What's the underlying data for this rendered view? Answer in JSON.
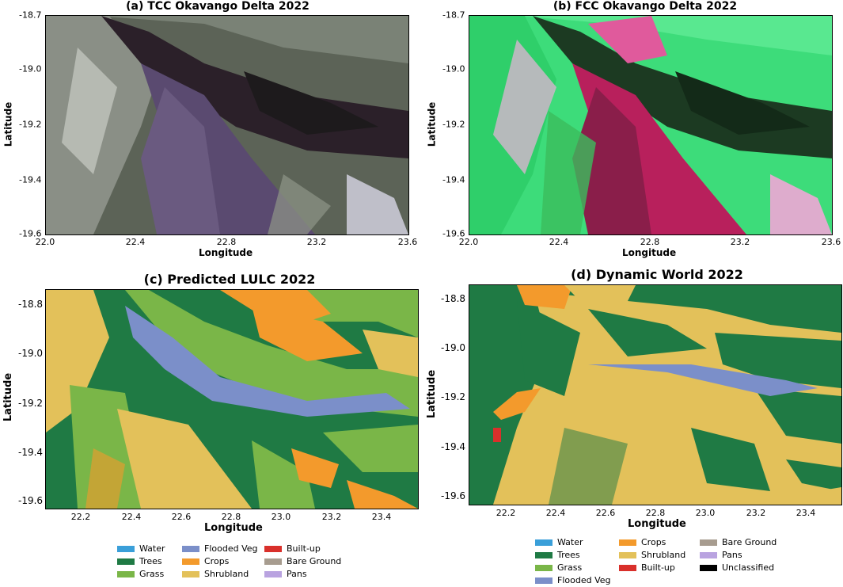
{
  "panels": {
    "a": {
      "title": "(a) TCC Okavango Delta 2022",
      "xlabel": "Longitude",
      "ylabel": "Latitude",
      "xticks": [
        "22.0",
        "22.4",
        "22.8",
        "23.2",
        "23.6"
      ],
      "yticks": [
        "-18.7",
        "-19.0",
        "-19.2",
        "-19.4",
        "-19.6"
      ]
    },
    "b": {
      "title": "(b) FCC Okavango Delta 2022",
      "xlabel": "Longitude",
      "ylabel": "Latitude",
      "xticks": [
        "22.0",
        "22.4",
        "22.8",
        "23.2",
        "23.6"
      ],
      "yticks": [
        "-18.7",
        "-19.0",
        "-19.2",
        "-19.4",
        "-19.6"
      ]
    },
    "c": {
      "title": "(c) Predicted LULC 2022",
      "xlabel": "Longitude",
      "ylabel": "Latitude",
      "xticks": [
        "22.2",
        "22.4",
        "22.6",
        "22.8",
        "23.0",
        "23.2",
        "23.4"
      ],
      "yticks": [
        "-18.8",
        "-19.0",
        "-19.2",
        "-19.4",
        "-19.6"
      ]
    },
    "d": {
      "title": "(d) Dynamic World 2022",
      "xlabel": "Longitude",
      "ylabel": "Latitude",
      "xticks": [
        "22.2",
        "22.4",
        "22.6",
        "22.8",
        "23.0",
        "23.2",
        "23.4"
      ],
      "yticks": [
        "-18.8",
        "-19.0",
        "-19.2",
        "-19.4",
        "-19.6"
      ]
    }
  },
  "legend_c": [
    {
      "label": "Water",
      "color": "#3a9fd9"
    },
    {
      "label": "Trees",
      "color": "#1f7a44"
    },
    {
      "label": "Grass",
      "color": "#7ab648"
    },
    {
      "label": "Flooded Veg",
      "color": "#7b8fc9"
    },
    {
      "label": "Crops",
      "color": "#f39a2c"
    },
    {
      "label": "Shrubland",
      "color": "#e3c15a"
    },
    {
      "label": "Built-up",
      "color": "#d9302b"
    },
    {
      "label": "Bare Ground",
      "color": "#a79c8f"
    },
    {
      "label": "Pans",
      "color": "#b9a3e0"
    }
  ],
  "legend_d": [
    {
      "label": "Water",
      "color": "#3a9fd9"
    },
    {
      "label": "Trees",
      "color": "#1f7a44"
    },
    {
      "label": "Grass",
      "color": "#7ab648"
    },
    {
      "label": "Flooded Veg",
      "color": "#7b8fc9"
    },
    {
      "label": "Crops",
      "color": "#f39a2c"
    },
    {
      "label": "Shrubland",
      "color": "#e3c15a"
    },
    {
      "label": "Built-up",
      "color": "#d9302b"
    },
    {
      "label": "Bare Ground",
      "color": "#a79c8f"
    },
    {
      "label": "Pans",
      "color": "#b9a3e0"
    },
    {
      "label": "Unclassified",
      "color": "#000000"
    }
  ]
}
